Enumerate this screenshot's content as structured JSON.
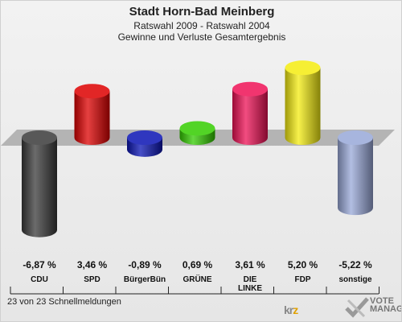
{
  "header": {
    "title": "Stadt Horn-Bad Meinberg",
    "subtitle1": "Ratswahl 2009 - Ratswahl 2004",
    "subtitle2": "Gewinne und Verluste Gesamtergebnis"
  },
  "footer": {
    "text": "23 von 23 Schnellmeldungen"
  },
  "logos": {
    "krz": "krz",
    "votemanager": "VOTE MANAGER"
  },
  "chart_data": {
    "type": "bar",
    "title": "Stadt Horn-Bad Meinberg",
    "categories": [
      "CDU",
      "SPD",
      "BürgerBün",
      "GRÜNE",
      "DIE LINKE",
      "FDP",
      "sonstige"
    ],
    "values": [
      -6.87,
      3.46,
      -0.89,
      0.69,
      3.61,
      5.2,
      -5.22
    ],
    "value_labels": [
      "-6,87 %",
      "3,46 %",
      "-0,89 %",
      "0,69 %",
      "3,61 %",
      "5,20 %",
      "-5,22 %"
    ],
    "colors": [
      "#3a3a3a",
      "#dd0000",
      "#0a14b4",
      "#33cc00",
      "#ee1155",
      "#f4ec10",
      "#98a8d8"
    ],
    "unit": "%"
  }
}
